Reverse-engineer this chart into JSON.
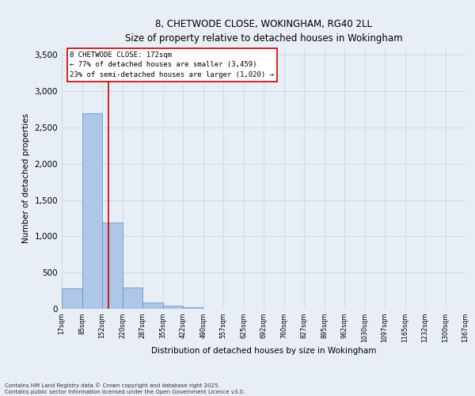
{
  "title_line1": "8, CHETWODE CLOSE, WOKINGHAM, RG40 2LL",
  "title_line2": "Size of property relative to detached houses in Wokingham",
  "xlabel": "Distribution of detached houses by size in Wokingham",
  "ylabel": "Number of detached properties",
  "bar_edges": [
    17,
    85,
    152,
    220,
    287,
    355,
    422,
    490,
    557,
    625,
    692,
    760,
    827,
    895,
    962,
    1030,
    1097,
    1165,
    1232,
    1300,
    1367
  ],
  "bar_heights": [
    280,
    2690,
    1185,
    295,
    90,
    40,
    20,
    0,
    0,
    0,
    0,
    0,
    0,
    0,
    0,
    0,
    0,
    0,
    0,
    0
  ],
  "bar_color": "#aec6e8",
  "bar_edgecolor": "#5a8fc0",
  "grid_color": "#c8d8e8",
  "background_color": "#e8eef5",
  "vline_x": 172,
  "vline_color": "#cc0000",
  "annotation_text": "8 CHETWODE CLOSE: 172sqm\n← 77% of detached houses are smaller (3,459)\n23% of semi-detached houses are larger (1,020) →",
  "annotation_box_color": "#cc0000",
  "ylim": [
    0,
    3600
  ],
  "yticks": [
    0,
    500,
    1000,
    1500,
    2000,
    2500,
    3000,
    3500
  ],
  "footnote1": "Contains HM Land Registry data © Crown copyright and database right 2025.",
  "footnote2": "Contains public sector information licensed under the Open Government Licence v3.0."
}
